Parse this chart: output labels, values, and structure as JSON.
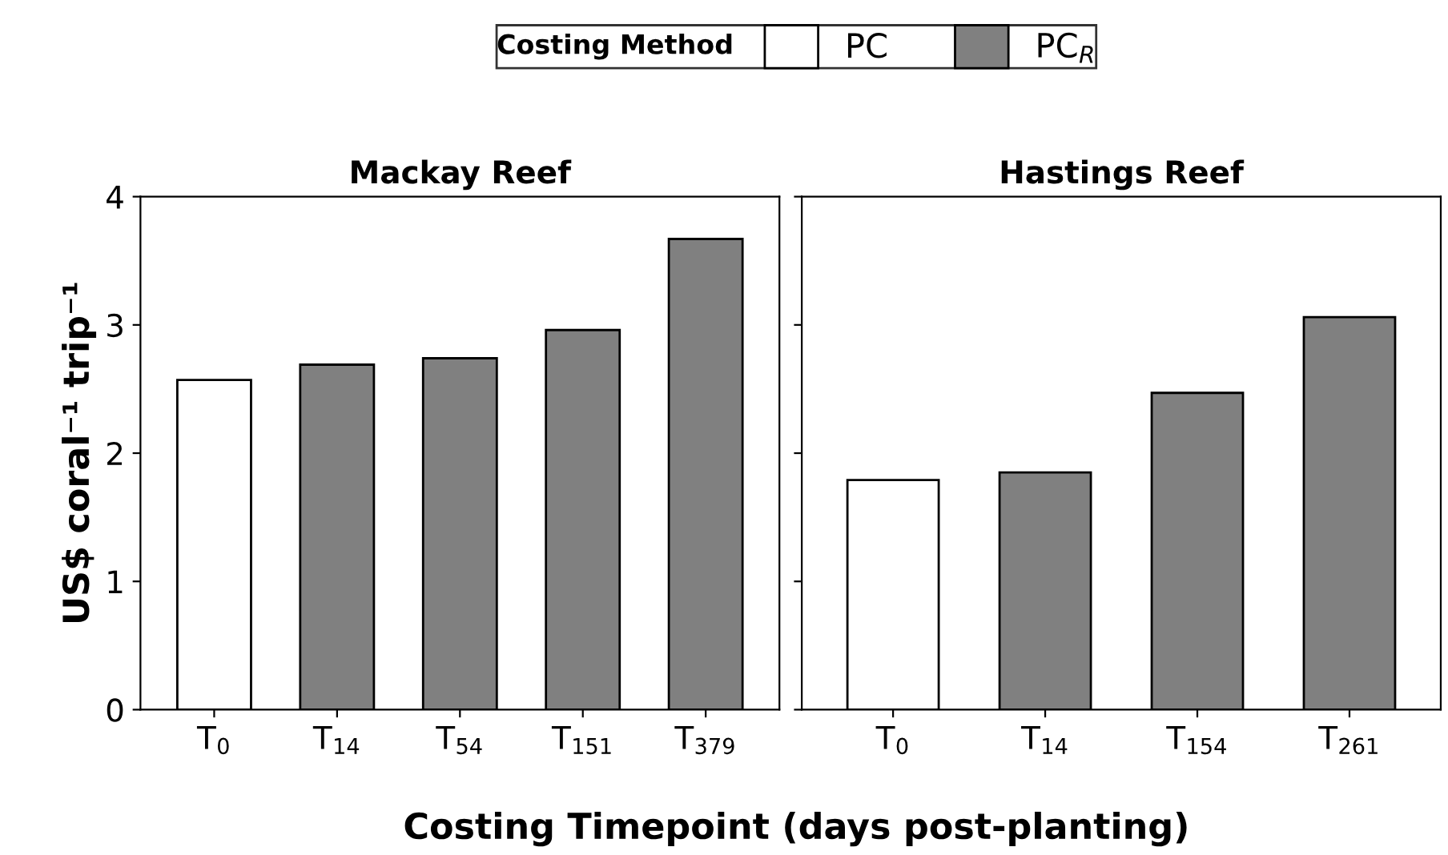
{
  "chart_data": [
    {
      "type": "bar",
      "title": "Mackay Reef",
      "xlabel": "Costing Timepoint (days post-planting)",
      "ylabel": "US$ coral⁻¹ trip⁻¹",
      "legend_title": "Costing Method",
      "categories": [
        "T$_{0}$",
        "T$_{14}$",
        "T$_{54}$",
        "T$_{151}$",
        "T$_{379}$"
      ],
      "series": [
        {
          "name": "PC",
          "color": "#ffffff",
          "values": [
            2.57,
            null,
            null,
            null,
            null
          ]
        },
        {
          "name": "PC$_{R}$",
          "color": "#808080",
          "values": [
            null,
            2.69,
            2.74,
            2.96,
            3.67
          ]
        }
      ],
      "ylim": [
        0,
        4
      ],
      "yticks": [
        0,
        1,
        2,
        3,
        4
      ],
      "grid": false,
      "legend": "top"
    },
    {
      "type": "bar",
      "title": "Hastings Reef",
      "categories": [
        "T$_{0}$",
        "T$_{14}$",
        "T$_{154}$",
        "T$_{261}$"
      ],
      "series": [
        {
          "color": "#ffffff",
          "values": [
            1.79,
            null,
            null,
            null
          ]
        },
        {
          "color": "#808080",
          "values": [
            null,
            1.85,
            2.47,
            3.06
          ]
        }
      ],
      "ylim": [
        0,
        4
      ],
      "yticks": [
        0,
        1,
        2,
        3,
        4
      ],
      "grid": false,
      "legend": false,
      "tick_labels": "x"
    }
  ]
}
